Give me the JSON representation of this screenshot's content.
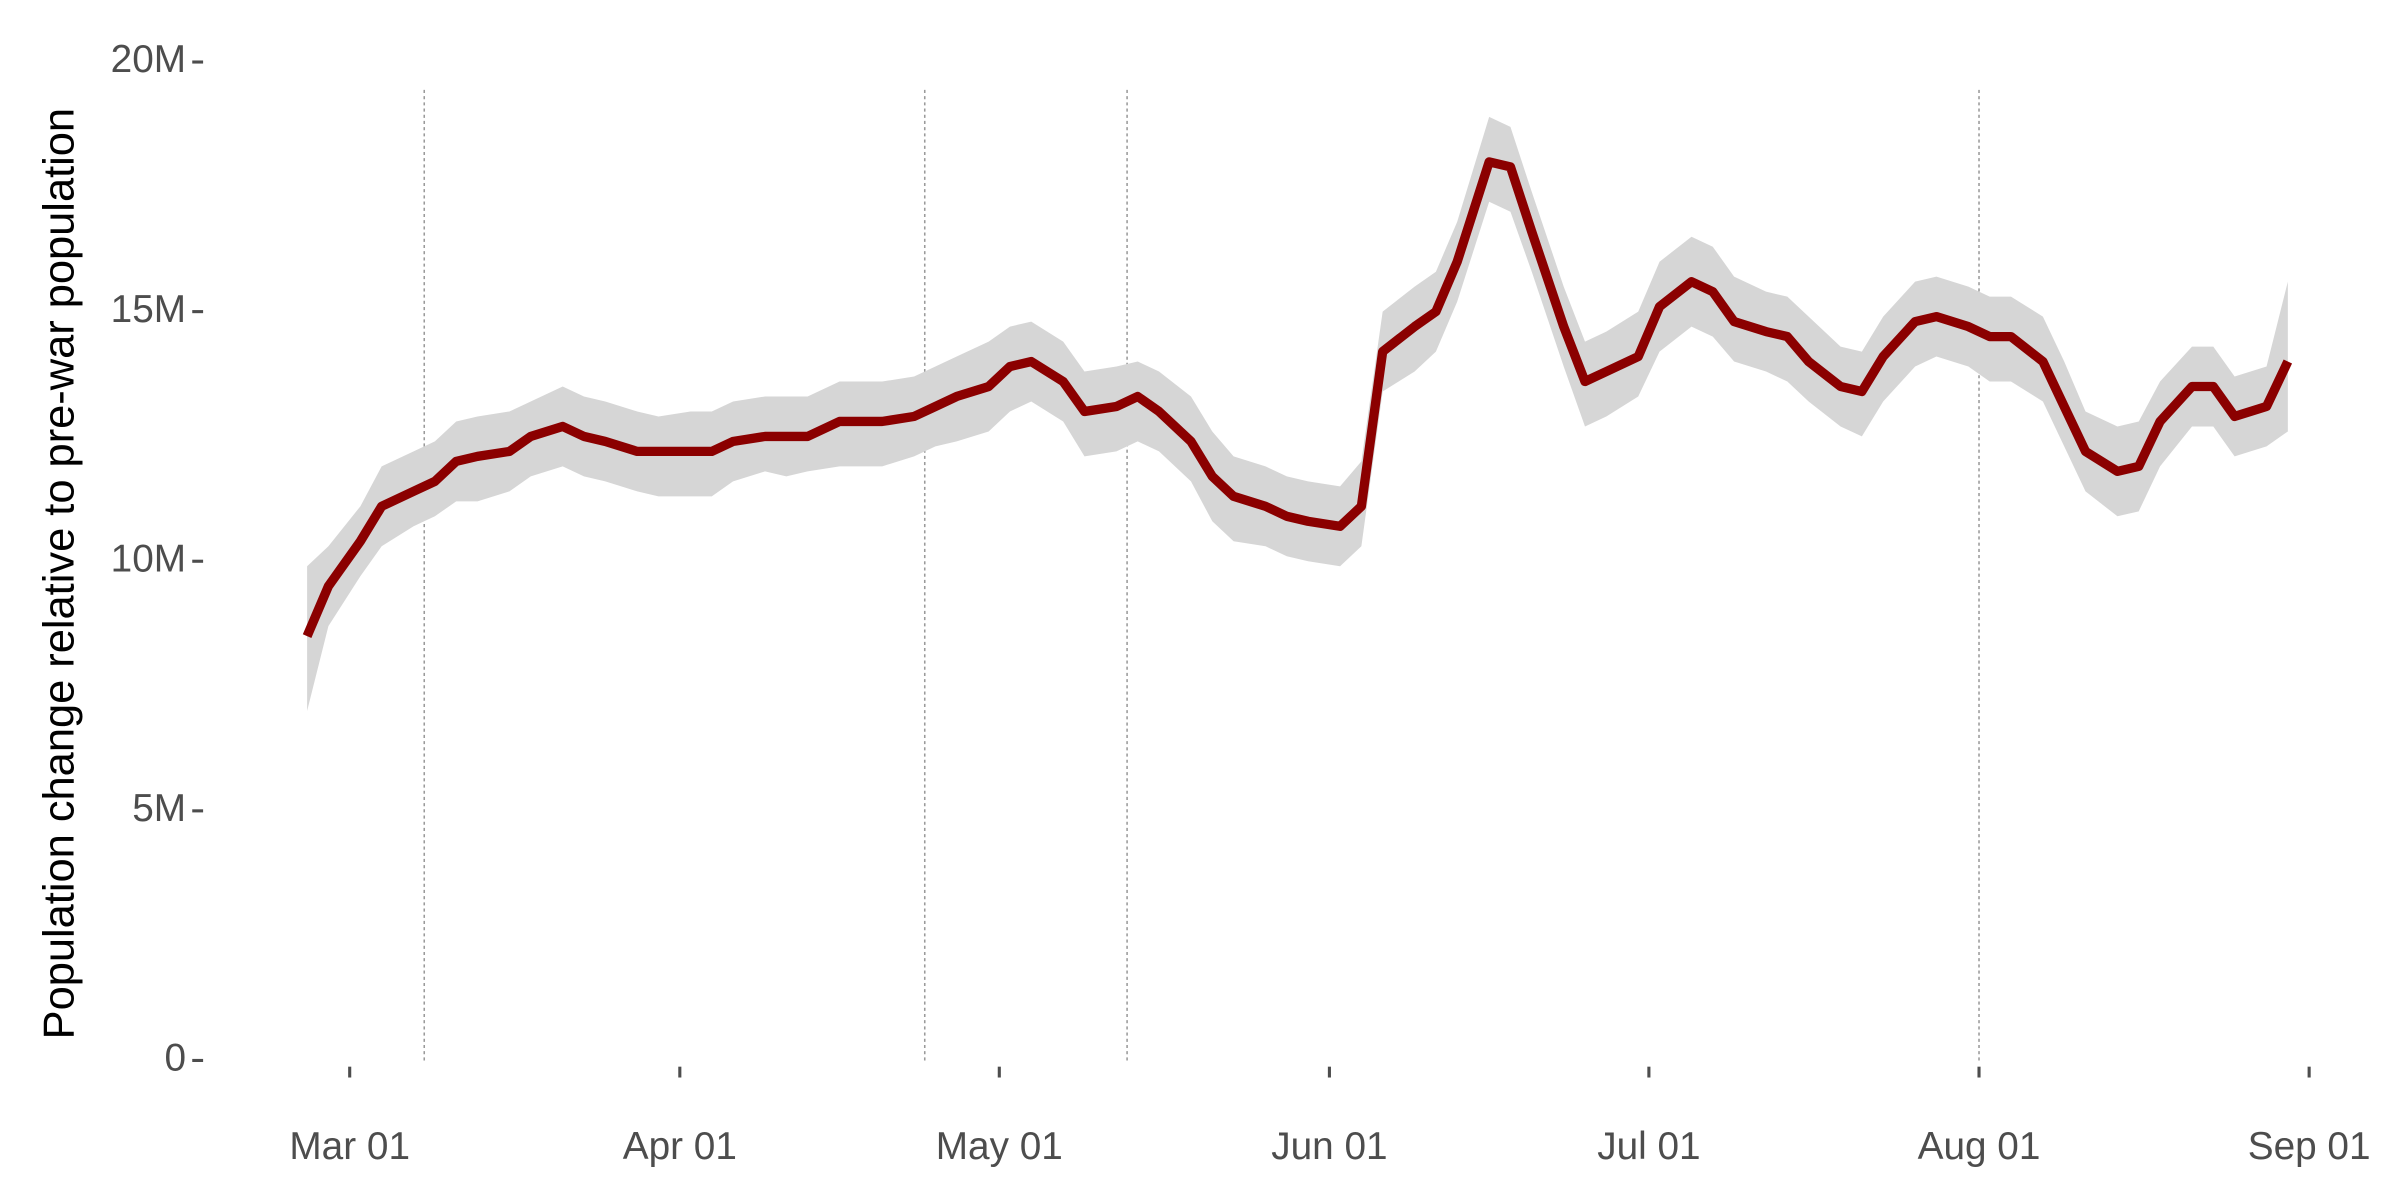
{
  "chart_data": {
    "type": "line",
    "ylabel": "Population change relative to pre-war population",
    "x": [
      "Feb 25",
      "Feb 27",
      "Mar 02",
      "Mar 04",
      "Mar 07",
      "Mar 09",
      "Mar 11",
      "Mar 13",
      "Mar 16",
      "Mar 18",
      "Mar 21",
      "Mar 23",
      "Mar 25",
      "Mar 28",
      "Mar 30",
      "Apr 02",
      "Apr 04",
      "Apr 06",
      "Apr 09",
      "Apr 11",
      "Apr 13",
      "Apr 16",
      "Apr 18",
      "Apr 20",
      "Apr 23",
      "Apr 25",
      "Apr 27",
      "Apr 30",
      "May 02",
      "May 04",
      "May 07",
      "May 09",
      "May 12",
      "May 14",
      "May 16",
      "May 19",
      "May 21",
      "May 23",
      "May 26",
      "May 28",
      "May 30",
      "Jun 02",
      "Jun 04",
      "Jun 06",
      "Jun 09",
      "Jun 11",
      "Jun 13",
      "Jun 16",
      "Jun 18",
      "Jun 20",
      "Jun 23",
      "Jun 25",
      "Jun 27",
      "Jun 30",
      "Jul 02",
      "Jul 05",
      "Jul 07",
      "Jul 09",
      "Jul 12",
      "Jul 14",
      "Jul 16",
      "Jul 19",
      "Jul 21",
      "Jul 23",
      "Jul 26",
      "Jul 28",
      "Jul 31",
      "Aug 02",
      "Aug 04",
      "Aug 07",
      "Aug 09",
      "Aug 11",
      "Aug 14",
      "Aug 16",
      "Aug 18",
      "Aug 21",
      "Aug 23",
      "Aug 25",
      "Aug 28",
      "Aug 30"
    ],
    "values": [
      8.5,
      9.5,
      10.4,
      11.1,
      11.4,
      11.6,
      12.0,
      12.1,
      12.2,
      12.5,
      12.7,
      12.5,
      12.4,
      12.2,
      12.2,
      12.2,
      12.2,
      12.4,
      12.5,
      12.5,
      12.5,
      12.8,
      12.8,
      12.8,
      12.9,
      13.1,
      13.3,
      13.5,
      13.9,
      14.0,
      13.6,
      13.0,
      13.1,
      13.3,
      13.0,
      12.4,
      11.7,
      11.3,
      11.1,
      10.9,
      10.8,
      10.7,
      11.1,
      14.2,
      14.7,
      15.0,
      16.0,
      18.0,
      17.9,
      16.6,
      14.7,
      13.6,
      13.8,
      14.1,
      15.1,
      15.6,
      15.4,
      14.8,
      14.6,
      14.5,
      14.0,
      13.5,
      13.4,
      14.1,
      14.8,
      14.9,
      14.7,
      14.5,
      14.5,
      14.0,
      13.1,
      12.2,
      11.8,
      11.9,
      12.8,
      13.5,
      13.5,
      12.9,
      13.1,
      14.0
    ],
    "band_lower": [
      7.0,
      8.7,
      9.7,
      10.3,
      10.7,
      10.9,
      11.2,
      11.2,
      11.4,
      11.7,
      11.9,
      11.7,
      11.6,
      11.4,
      11.3,
      11.3,
      11.3,
      11.6,
      11.8,
      11.7,
      11.8,
      11.9,
      11.9,
      11.9,
      12.1,
      12.3,
      12.4,
      12.6,
      13.0,
      13.2,
      12.8,
      12.1,
      12.2,
      12.4,
      12.2,
      11.6,
      10.8,
      10.4,
      10.3,
      10.1,
      10.0,
      9.9,
      10.3,
      13.4,
      13.8,
      14.2,
      15.2,
      17.2,
      17.0,
      15.8,
      13.9,
      12.7,
      12.9,
      13.3,
      14.2,
      14.7,
      14.5,
      14.0,
      13.8,
      13.6,
      13.2,
      12.7,
      12.5,
      13.2,
      13.9,
      14.1,
      13.9,
      13.6,
      13.6,
      13.2,
      12.3,
      11.4,
      10.9,
      11.0,
      11.9,
      12.7,
      12.7,
      12.1,
      12.3,
      12.6
    ],
    "band_upper": [
      9.9,
      10.3,
      11.1,
      11.9,
      12.2,
      12.4,
      12.8,
      12.9,
      13.0,
      13.2,
      13.5,
      13.3,
      13.2,
      13.0,
      12.9,
      13.0,
      13.0,
      13.2,
      13.3,
      13.3,
      13.3,
      13.6,
      13.6,
      13.6,
      13.7,
      13.9,
      14.1,
      14.4,
      14.7,
      14.8,
      14.4,
      13.8,
      13.9,
      14.0,
      13.8,
      13.3,
      12.6,
      12.1,
      11.9,
      11.7,
      11.6,
      11.5,
      12.0,
      15.0,
      15.5,
      15.8,
      16.8,
      18.9,
      18.7,
      17.4,
      15.5,
      14.4,
      14.6,
      15.0,
      16.0,
      16.5,
      16.3,
      15.7,
      15.4,
      15.3,
      14.9,
      14.3,
      14.2,
      14.9,
      15.6,
      15.7,
      15.5,
      15.3,
      15.3,
      14.9,
      14.0,
      13.0,
      12.7,
      12.8,
      13.6,
      14.3,
      14.3,
      13.7,
      13.9,
      15.6
    ],
    "color": "#8b0000",
    "band_color": "#d6d6d6",
    "vlines": [
      "Mar 08",
      "Apr 24",
      "May 13",
      "Aug 01"
    ],
    "xlim": [
      "Feb 18",
      "Sep 04"
    ],
    "xticks": [
      "Mar 01",
      "Apr 01",
      "May 01",
      "Jun 01",
      "Jul 01",
      "Aug 01",
      "Sep 01"
    ],
    "ylim": [
      0,
      20
    ],
    "yticks": [
      0,
      {
        "value": 5,
        "label": "5M"
      },
      {
        "value": 10,
        "label": "10M"
      },
      {
        "value": 15,
        "label": "15M"
      },
      {
        "value": 20,
        "label": "20M"
      }
    ]
  }
}
